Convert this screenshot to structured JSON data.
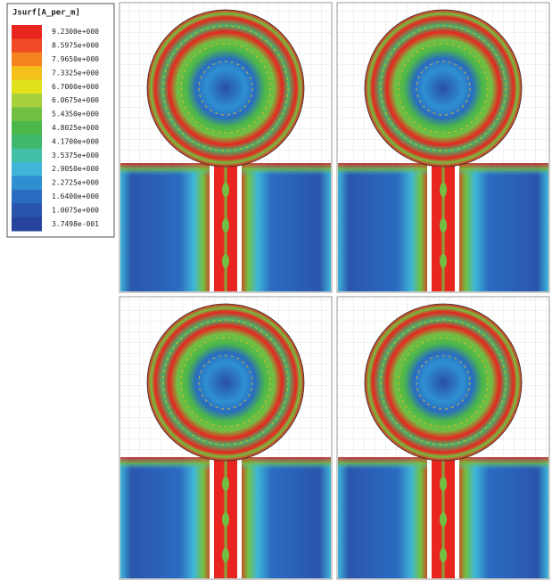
{
  "legend": {
    "title": "Jsurf[A_per_m]",
    "entries": [
      {
        "label": "9.2300e+000",
        "color": "#e8251e"
      },
      {
        "label": "8.5975e+000",
        "color": "#ee4a26"
      },
      {
        "label": "7.9650e+000",
        "color": "#f5841f"
      },
      {
        "label": "7.3325e+000",
        "color": "#f5c01a"
      },
      {
        "label": "6.7000e+000",
        "color": "#e2e21c"
      },
      {
        "label": "6.0675e+000",
        "color": "#a6d13a"
      },
      {
        "label": "5.4350e+000",
        "color": "#72c043"
      },
      {
        "label": "4.8025e+000",
        "color": "#4bb74a"
      },
      {
        "label": "4.1700e+000",
        "color": "#3fb86e"
      },
      {
        "label": "3.5375e+000",
        "color": "#44c0a6"
      },
      {
        "label": "2.9050e+000",
        "color": "#3fb6d8"
      },
      {
        "label": "2.2725e+000",
        "color": "#2e90d0"
      },
      {
        "label": "1.6400e+000",
        "color": "#2a6cc0"
      },
      {
        "label": "1.0075e+000",
        "color": "#2a55ad"
      },
      {
        "label": "3.7498e-001",
        "color": "#27449c"
      }
    ]
  }
}
